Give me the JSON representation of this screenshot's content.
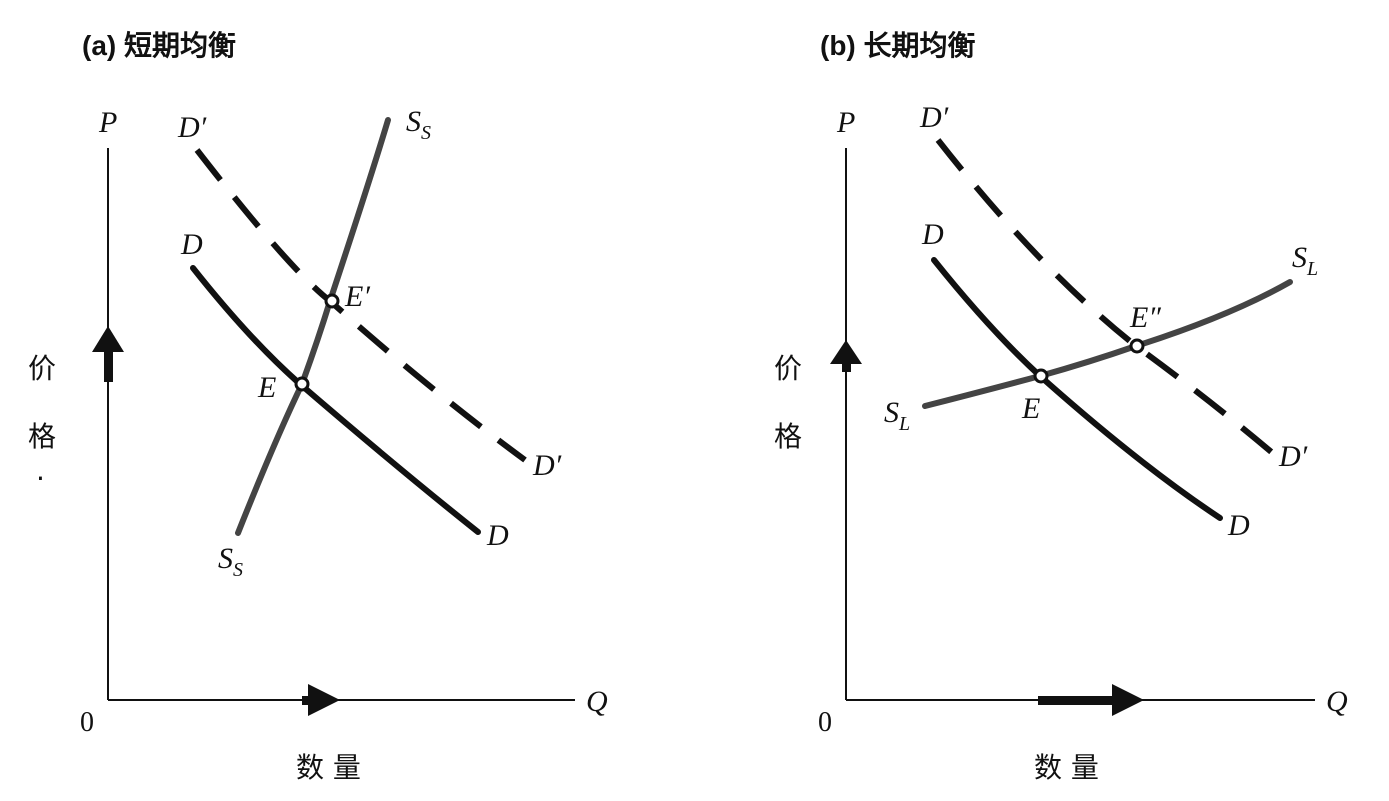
{
  "panel_a": {
    "title": "(a)  短期均衡",
    "axis_p": "P",
    "axis_q": "Q",
    "origin": "0",
    "price_label_1": "价",
    "price_label_2": "格",
    "price_dot": "·",
    "quantity_label": "数   量",
    "d_prime_top": "D′",
    "d_prime_bottom": "D′",
    "d_top": "D",
    "d_bottom": "D",
    "s_main": "S",
    "s_sub": "S",
    "e_label": "E",
    "e_prime_label": "E′"
  },
  "panel_b": {
    "title": "(b)  长期均衡",
    "axis_p": "P",
    "axis_q": "Q",
    "origin": "0",
    "price_label_1": "价",
    "price_label_2": "格",
    "quantity_label": "数   量",
    "d_prime_top": "D′",
    "d_prime_bottom": "D′",
    "d_top": "D",
    "d_bottom": "D",
    "s_main": "S",
    "s_sub": "L",
    "e_label": "E",
    "e_double_prime_label": "E″"
  }
}
